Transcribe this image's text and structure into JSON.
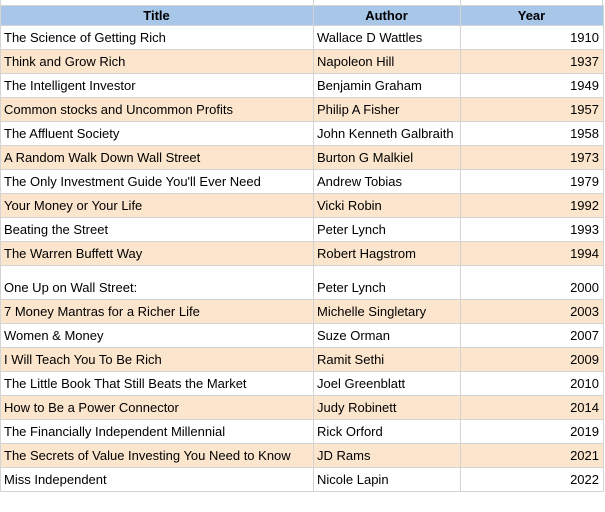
{
  "colors": {
    "header_bg": "#a7c6e8",
    "row_alt_bg": "#fce5cd",
    "border": "#d4d4d4",
    "text": "#000000"
  },
  "header": {
    "title": "Title",
    "author": "Author",
    "year": "Year"
  },
  "rows": [
    {
      "title": "The Science of Getting Rich",
      "author": "Wallace D Wattles",
      "year": "1910"
    },
    {
      "title": "Think and Grow Rich",
      "author": "Napoleon Hill",
      "year": "1937"
    },
    {
      "title": "The Intelligent Investor",
      "author": "Benjamin Graham",
      "year": "1949"
    },
    {
      "title": "Common stocks and Uncommon Profits",
      "author": "Philip A Fisher",
      "year": "1957"
    },
    {
      "title": "The Affluent Society",
      "author": "John Kenneth Galbraith",
      "year": "1958"
    },
    {
      "title": "A Random Walk Down Wall Street",
      "author": "Burton G Malkiel",
      "year": "1973"
    },
    {
      "title": "The Only Investment Guide You'll Ever Need",
      "author": "Andrew Tobias",
      "year": "1979"
    },
    {
      "title": "Your Money or Your Life",
      "author": "Vicki Robin",
      "year": "1992"
    },
    {
      "title": "Beating the Street",
      "author": "Peter Lynch",
      "year": "1993"
    },
    {
      "title": "The Warren Buffett Way",
      "author": "Robert Hagstrom",
      "year": "1994"
    },
    {
      "title": "One Up on Wall Street:",
      "author": "Peter Lynch",
      "year": "2000"
    },
    {
      "title": "7 Money Mantras for a Richer Life",
      "author": "Michelle Singletary",
      "year": "2003"
    },
    {
      "title": "Women & Money",
      "author": "Suze Orman",
      "year": "2007"
    },
    {
      "title": "I Will Teach You To Be Rich",
      "author": "Ramit Sethi",
      "year": "2009"
    },
    {
      "title": "The Little Book That Still Beats the Market",
      "author": "Joel Greenblatt",
      "year": "2010"
    },
    {
      "title": "How to Be a Power Connector",
      "author": "Judy Robinett",
      "year": "2014"
    },
    {
      "title": "The Financially Independent Millennial",
      "author": "Rick Orford",
      "year": "2019"
    },
    {
      "title": "The Secrets of Value Investing You Need to Know",
      "author": "JD Rams",
      "year": "2021"
    },
    {
      "title": "Miss Independent",
      "author": "Nicole Lapin",
      "year": "2022"
    }
  ]
}
